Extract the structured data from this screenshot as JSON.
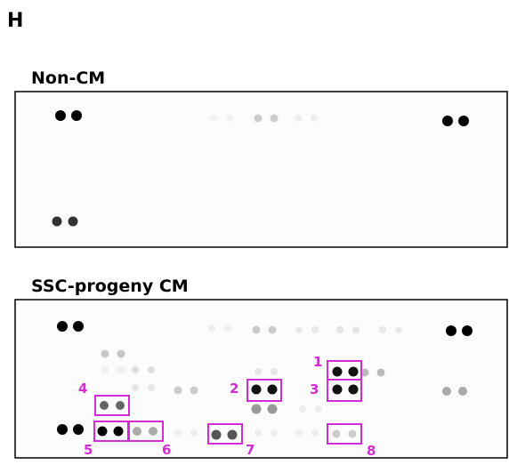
{
  "panel_label": "H",
  "blots": [
    {
      "title": "Non-CM"
    },
    {
      "title": "SSC-progeny CM",
      "callouts": [
        "1",
        "2",
        "3",
        "4",
        "5",
        "6",
        "7",
        "8"
      ]
    }
  ]
}
